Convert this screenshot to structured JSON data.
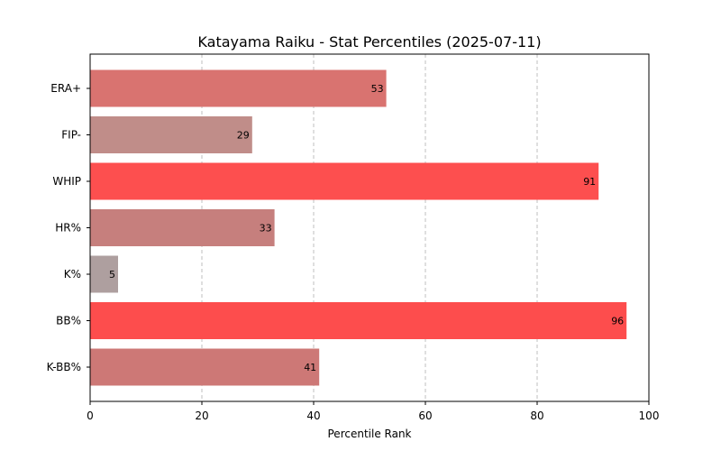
{
  "chart_data": {
    "type": "bar",
    "orientation": "horizontal",
    "title": "Katayama Raiku - Stat Percentiles (2025-07-11)",
    "xlabel": "Percentile Rank",
    "ylabel": "",
    "xlim": [
      0,
      100
    ],
    "xticks": [
      0,
      20,
      40,
      60,
      80,
      100
    ],
    "grid": "x-axis dashed",
    "categories": [
      "ERA+",
      "FIP-",
      "WHIP",
      "HR%",
      "K%",
      "BB%",
      "K-BB%"
    ],
    "values": [
      53,
      29,
      91,
      33,
      5,
      96,
      41
    ],
    "bar_colors": [
      "#d97370",
      "#c08d89",
      "#fd4f4f",
      "#c67f7d",
      "#ae9f9f",
      "#fd4d4d",
      "#cd7876"
    ]
  }
}
